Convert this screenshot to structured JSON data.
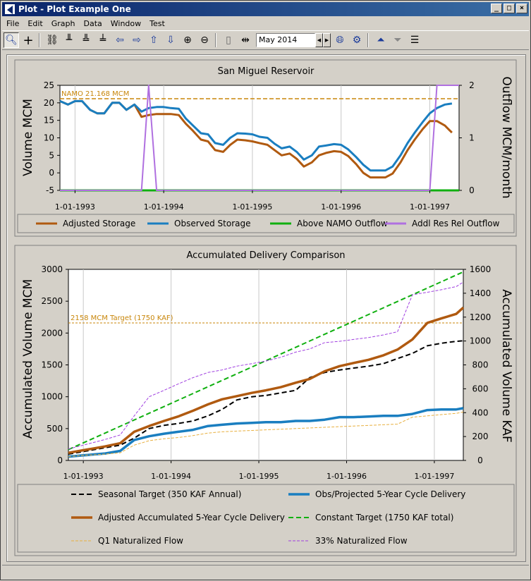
{
  "window": {
    "title": "Plot - Plot Example One",
    "buttons": [
      "_",
      "□",
      "×"
    ]
  },
  "menu": [
    "File",
    "Edit",
    "Graph",
    "Data",
    "Window",
    "Test"
  ],
  "toolbar": {
    "date_value": "May 2014"
  },
  "chart_data": [
    {
      "type": "line",
      "title": "San Miguel Reservoir",
      "ylabel": "Volume MCM",
      "y2label": "Outflow MCM/month",
      "xlim": [
        1992.83,
        1997.33
      ],
      "ylim": [
        -5,
        25
      ],
      "y2lim": [
        0,
        2
      ],
      "x_ticks": [
        "1-01-1993",
        "1-01-1994",
        "1-01-1995",
        "1-01-1996",
        "1-01-1997"
      ],
      "y_ticks": [
        -5,
        0,
        5,
        10,
        15,
        20,
        25
      ],
      "y2_ticks": [
        0,
        1,
        2
      ],
      "reference_line": {
        "label": "NAMO 21.168 MCM",
        "value": 21.168,
        "color": "#c8860a"
      },
      "colors": {
        "adjusted": "#b05a10",
        "observed": "#1a7ec0",
        "above_namo": "#10b010",
        "addl": "#b070e0"
      },
      "legend": [
        "Adjusted Storage",
        "Observed Storage",
        "Above NAMO Outflow",
        "Addl Res Rel Outflow"
      ],
      "series": [
        {
          "name": "Adjusted Storage",
          "axis": "y",
          "x": [
            1992.83,
            1992.92,
            1993.0,
            1993.08,
            1993.17,
            1993.25,
            1993.33,
            1993.42,
            1993.5,
            1993.58,
            1993.67,
            1993.75,
            1993.83,
            1993.92,
            1994.0,
            1994.08,
            1994.17,
            1994.25,
            1994.33,
            1994.42,
            1994.5,
            1994.58,
            1994.67,
            1994.75,
            1994.83,
            1994.92,
            1995.0,
            1995.08,
            1995.17,
            1995.25,
            1995.33,
            1995.42,
            1995.5,
            1995.58,
            1995.67,
            1995.75,
            1995.83,
            1995.92,
            1996.0,
            1996.08,
            1996.17,
            1996.25,
            1996.33,
            1996.42,
            1996.5,
            1996.58,
            1996.67,
            1996.75,
            1996.83,
            1996.92,
            1997.0,
            1997.08,
            1997.17,
            1997.25
          ],
          "y": [
            20.5,
            19.5,
            20.5,
            20.5,
            18,
            17,
            17,
            20,
            20,
            18,
            19.5,
            16,
            16.5,
            16.8,
            16.8,
            16.8,
            16.5,
            14,
            12,
            9.5,
            9,
            6.5,
            6,
            8,
            9.5,
            9.3,
            9,
            8.5,
            8,
            6.5,
            5,
            5.5,
            4,
            1.8,
            3,
            5,
            5.7,
            6.2,
            6,
            4.8,
            2.5,
            0,
            -1.3,
            -1.3,
            -1.3,
            -0.2,
            3,
            6.5,
            9.5,
            12.5,
            14.8,
            14.8,
            13.5,
            11.5
          ]
        },
        {
          "name": "Observed Storage",
          "axis": "y",
          "x": [
            1992.83,
            1992.92,
            1993.0,
            1993.08,
            1993.17,
            1993.25,
            1993.33,
            1993.42,
            1993.5,
            1993.58,
            1993.67,
            1993.75,
            1993.83,
            1993.92,
            1994.0,
            1994.08,
            1994.17,
            1994.25,
            1994.33,
            1994.42,
            1994.5,
            1994.58,
            1994.67,
            1994.75,
            1994.83,
            1994.92,
            1995.0,
            1995.08,
            1995.17,
            1995.25,
            1995.33,
            1995.42,
            1995.5,
            1995.58,
            1995.67,
            1995.75,
            1995.83,
            1995.92,
            1996.0,
            1996.08,
            1996.17,
            1996.25,
            1996.33,
            1996.42,
            1996.5,
            1996.58,
            1996.67,
            1996.75,
            1996.83,
            1996.92,
            1997.0,
            1997.08,
            1997.17,
            1997.25
          ],
          "y": [
            20.5,
            19.5,
            20.5,
            20.5,
            18,
            17,
            17,
            20,
            20,
            18,
            19.5,
            17.5,
            18.5,
            18.8,
            18.8,
            18.5,
            18.3,
            15.5,
            13.5,
            11.3,
            11,
            8.5,
            8,
            10,
            11.3,
            11.2,
            11,
            10.3,
            10,
            8.3,
            7,
            7.5,
            6,
            3.8,
            5,
            7.5,
            7.8,
            8.2,
            8,
            6.7,
            4.5,
            2.3,
            0.7,
            0.7,
            0.7,
            1.8,
            5,
            8.5,
            11.5,
            14.5,
            17,
            18.5,
            19.5,
            19.8
          ]
        },
        {
          "name": "Above NAMO Outflow",
          "axis": "y2",
          "x": [
            1992.83,
            1993.75,
            1993.76,
            1993.91,
            1993.92,
            1997.0,
            1997.01,
            1997.33
          ],
          "y": [
            0,
            0,
            0,
            0,
            0,
            0,
            0,
            0
          ]
        },
        {
          "name": "Addl Res Rel Outflow",
          "axis": "y2",
          "x": [
            1992.83,
            1993.75,
            1993.83,
            1993.92,
            1997.0,
            1997.08,
            1997.33
          ],
          "y": [
            0,
            0,
            2,
            0,
            0,
            2,
            2
          ]
        }
      ]
    },
    {
      "type": "line",
      "title": "Accumulated Delivery Comparison",
      "ylabel": "Accumulated Volume MCM",
      "y2label": "Accumulated Volume KAF",
      "xlim": [
        1992.83,
        1997.33
      ],
      "ylim": [
        0,
        3000
      ],
      "y2lim": [
        0,
        1600
      ],
      "x_ticks": [
        "1-01-1993",
        "1-01-1994",
        "1-01-1995",
        "1-01-1996",
        "1-01-1997"
      ],
      "y_ticks": [
        0,
        500,
        1000,
        1500,
        2000,
        2500,
        3000
      ],
      "y2_ticks": [
        0,
        200,
        400,
        600,
        800,
        1000,
        1200,
        1400,
        1600
      ],
      "reference_line": {
        "label": "2158 MCM Target (1750 KAF)",
        "value": 2158,
        "color": "#c8860a"
      },
      "legend": [
        "Seasonal Target (350 KAF Annual)",
        "Obs/Projected 5-Year Cycle Delivery",
        "Adjusted Accumulated 5-Year Cycle Delivery",
        "Constant Target (1750 KAF total)",
        "Q1 Naturalized Flow",
        "33% Naturalized Flow"
      ],
      "series": [
        {
          "name": "Seasonal Target (350 KAF Annual)",
          "x": [
            1992.83,
            1993.0,
            1993.25,
            1993.42,
            1993.58,
            1993.75,
            1993.92,
            1994.08,
            1994.25,
            1994.42,
            1994.58,
            1994.75,
            1994.92,
            1995.08,
            1995.25,
            1995.42,
            1995.58,
            1995.75,
            1995.92,
            1996.08,
            1996.25,
            1996.42,
            1996.58,
            1996.75,
            1996.92,
            1997.08,
            1997.25,
            1997.33
          ],
          "y": [
            100,
            140,
            200,
            240,
            350,
            500,
            550,
            580,
            620,
            700,
            800,
            950,
            1000,
            1020,
            1060,
            1100,
            1300,
            1380,
            1420,
            1450,
            1480,
            1520,
            1600,
            1680,
            1800,
            1840,
            1870,
            1880
          ]
        },
        {
          "name": "Obs/Projected 5-Year Cycle Delivery",
          "x": [
            1992.83,
            1993.0,
            1993.25,
            1993.42,
            1993.58,
            1993.75,
            1993.92,
            1994.08,
            1994.25,
            1994.42,
            1994.58,
            1994.75,
            1994.92,
            1995.08,
            1995.25,
            1995.42,
            1995.58,
            1995.75,
            1995.92,
            1996.08,
            1996.25,
            1996.42,
            1996.58,
            1996.75,
            1996.92,
            1997.08,
            1997.25,
            1997.33
          ],
          "y": [
            60,
            80,
            110,
            150,
            320,
            380,
            420,
            450,
            480,
            540,
            560,
            580,
            590,
            600,
            600,
            620,
            620,
            640,
            680,
            680,
            690,
            700,
            700,
            730,
            790,
            800,
            800,
            820
          ]
        },
        {
          "name": "Adjusted Accumulated 5-Year Cycle Delivery",
          "x": [
            1992.83,
            1993.0,
            1993.25,
            1993.42,
            1993.58,
            1993.75,
            1993.92,
            1994.08,
            1994.25,
            1994.42,
            1994.58,
            1994.75,
            1994.92,
            1995.08,
            1995.25,
            1995.42,
            1995.58,
            1995.75,
            1995.92,
            1996.08,
            1996.25,
            1996.42,
            1996.58,
            1996.75,
            1996.92,
            1997.08,
            1997.25,
            1997.33
          ],
          "y": [
            120,
            160,
            220,
            270,
            450,
            540,
            620,
            690,
            780,
            880,
            960,
            1010,
            1060,
            1100,
            1150,
            1220,
            1280,
            1400,
            1480,
            1530,
            1580,
            1650,
            1740,
            1900,
            2160,
            2230,
            2300,
            2400
          ]
        },
        {
          "name": "Constant Target (1750 KAF total)",
          "x": [
            1992.83,
            1997.33
          ],
          "y": [
            170,
            2960
          ]
        },
        {
          "name": "Q1 Naturalized Flow",
          "x": [
            1992.83,
            1993.0,
            1993.25,
            1993.42,
            1993.58,
            1993.75,
            1993.92,
            1994.08,
            1994.25,
            1994.42,
            1994.58,
            1994.75,
            1994.92,
            1995.08,
            1995.25,
            1995.42,
            1995.58,
            1995.75,
            1995.92,
            1996.08,
            1996.25,
            1996.42,
            1996.58,
            1996.75,
            1996.92,
            1997.08,
            1997.25,
            1997.33
          ],
          "y": [
            60,
            80,
            100,
            120,
            240,
            310,
            340,
            360,
            390,
            430,
            450,
            460,
            470,
            480,
            490,
            500,
            510,
            520,
            530,
            540,
            550,
            560,
            570,
            680,
            700,
            720,
            740,
            760
          ]
        },
        {
          "name": "33% Naturalized Flow",
          "x": [
            1992.83,
            1993.0,
            1993.25,
            1993.42,
            1993.58,
            1993.75,
            1993.92,
            1994.08,
            1994.25,
            1994.42,
            1994.58,
            1994.75,
            1994.92,
            1995.08,
            1995.25,
            1995.42,
            1995.58,
            1995.75,
            1995.92,
            1996.08,
            1996.25,
            1996.42,
            1996.58,
            1996.75,
            1996.92,
            1997.08,
            1997.25,
            1997.33
          ],
          "y": [
            180,
            240,
            330,
            400,
            700,
            1000,
            1100,
            1200,
            1300,
            1380,
            1420,
            1480,
            1520,
            1560,
            1620,
            1700,
            1750,
            1850,
            1870,
            1900,
            1930,
            1970,
            2020,
            2600,
            2640,
            2680,
            2730,
            2800
          ]
        }
      ]
    }
  ]
}
